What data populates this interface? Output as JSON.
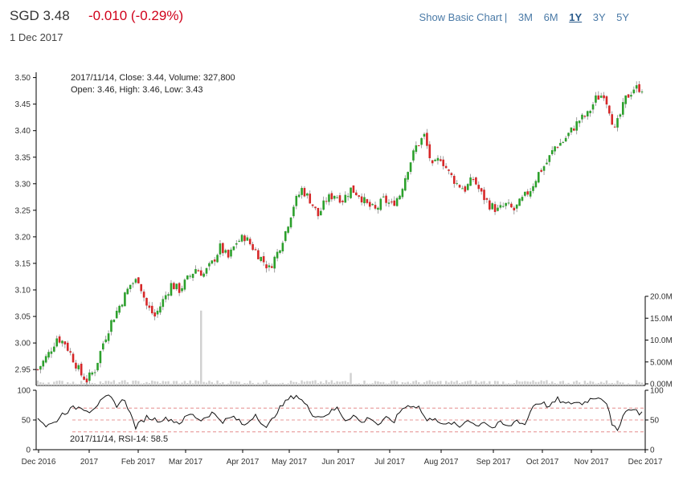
{
  "header": {
    "symbol_price": "SGD 3.48",
    "change": "-0.010 (-0.29%)",
    "date": "1 Dec 2017"
  },
  "nav": {
    "basic": "Show Basic Chart",
    "sep": "|",
    "ranges": [
      "3M",
      "6M",
      "1Y",
      "3Y",
      "5Y"
    ],
    "active": "1Y"
  },
  "tooltip": {
    "line1": "2017/11/14, Close: 3.44, Volume: 327,800",
    "line2": "Open: 3.46, High: 3.46, Low: 3.43",
    "rsi": "2017/11/14, RSI-14: 58.5"
  },
  "chart_data": {
    "type": "candlestick",
    "price_axis": {
      "min": 2.92,
      "max": 3.51,
      "ticks": [
        "2.95",
        "3.00",
        "3.05",
        "3.10",
        "3.15",
        "3.20",
        "3.25",
        "3.30",
        "3.35",
        "3.40",
        "3.45",
        "3.50"
      ]
    },
    "volume_axis": {
      "max": 20000000,
      "ticks": [
        "0.00M",
        "5.00M",
        "10.0M",
        "15.0M",
        "20.0M"
      ]
    },
    "rsi_axis": {
      "min": 0,
      "max": 100,
      "ticks": [
        "0",
        "50",
        "100"
      ],
      "bands": [
        30,
        50,
        70
      ]
    },
    "x_labels": [
      "Dec 2016",
      "2017",
      "Feb 2017",
      "Mar 2017",
      "Apr 2017",
      "May 2017",
      "Jun 2017",
      "Jul 2017",
      "Aug 2017",
      "Sep 2017",
      "Oct 2017",
      "Nov 2017",
      "Dec 2017"
    ],
    "up_color": "#2ca02c",
    "down_color": "#d62728",
    "close_path": [
      [
        0,
        2.95
      ],
      [
        4,
        2.98
      ],
      [
        7,
        3.01
      ],
      [
        10,
        3.0
      ],
      [
        13,
        2.97
      ],
      [
        16,
        2.94
      ],
      [
        18,
        2.93
      ],
      [
        21,
        2.95
      ],
      [
        24,
        3.0
      ],
      [
        27,
        3.04
      ],
      [
        31,
        3.08
      ],
      [
        34,
        3.11
      ],
      [
        37,
        3.12
      ],
      [
        40,
        3.07
      ],
      [
        43,
        3.05
      ],
      [
        46,
        3.08
      ],
      [
        49,
        3.11
      ],
      [
        52,
        3.1
      ],
      [
        55,
        3.12
      ],
      [
        58,
        3.14
      ],
      [
        61,
        3.13
      ],
      [
        64,
        3.15
      ],
      [
        67,
        3.18
      ],
      [
        70,
        3.16
      ],
      [
        73,
        3.19
      ],
      [
        76,
        3.2
      ],
      [
        79,
        3.18
      ],
      [
        82,
        3.16
      ],
      [
        85,
        3.14
      ],
      [
        88,
        3.17
      ],
      [
        91,
        3.21
      ],
      [
        94,
        3.26
      ],
      [
        97,
        3.29
      ],
      [
        100,
        3.27
      ],
      [
        103,
        3.24
      ],
      [
        106,
        3.27
      ],
      [
        109,
        3.28
      ],
      [
        112,
        3.27
      ],
      [
        115,
        3.29
      ],
      [
        118,
        3.28
      ],
      [
        121,
        3.26
      ],
      [
        124,
        3.25
      ],
      [
        127,
        3.27
      ],
      [
        130,
        3.26
      ],
      [
        133,
        3.28
      ],
      [
        136,
        3.33
      ],
      [
        139,
        3.37
      ],
      [
        142,
        3.39
      ],
      [
        145,
        3.33
      ],
      [
        148,
        3.35
      ],
      [
        151,
        3.32
      ],
      [
        154,
        3.3
      ],
      [
        157,
        3.29
      ],
      [
        160,
        3.31
      ],
      [
        163,
        3.28
      ],
      [
        166,
        3.26
      ],
      [
        169,
        3.25
      ],
      [
        172,
        3.26
      ],
      [
        175,
        3.25
      ],
      [
        178,
        3.27
      ],
      [
        181,
        3.29
      ],
      [
        184,
        3.32
      ],
      [
        187,
        3.34
      ],
      [
        190,
        3.37
      ],
      [
        193,
        3.38
      ],
      [
        196,
        3.4
      ],
      [
        199,
        3.42
      ],
      [
        202,
        3.43
      ],
      [
        205,
        3.46
      ],
      [
        208,
        3.47
      ],
      [
        210,
        3.44
      ],
      [
        212,
        3.4
      ],
      [
        214,
        3.43
      ],
      [
        216,
        3.46
      ],
      [
        219,
        3.48
      ],
      [
        222,
        3.48
      ]
    ],
    "volume_spikes": [
      [
        60,
        16.8
      ],
      [
        115,
        2.8
      ]
    ],
    "rsi_path": [
      [
        0,
        55
      ],
      [
        3,
        40
      ],
      [
        6,
        45
      ],
      [
        9,
        60
      ],
      [
        13,
        70
      ],
      [
        16,
        72
      ],
      [
        19,
        65
      ],
      [
        23,
        80
      ],
      [
        26,
        90
      ],
      [
        29,
        75
      ],
      [
        32,
        85
      ],
      [
        34,
        60
      ],
      [
        36,
        38
      ],
      [
        40,
        55
      ],
      [
        44,
        50
      ],
      [
        48,
        52
      ],
      [
        52,
        45
      ],
      [
        56,
        60
      ],
      [
        60,
        50
      ],
      [
        64,
        62
      ],
      [
        68,
        48
      ],
      [
        72,
        55
      ],
      [
        76,
        40
      ],
      [
        80,
        60
      ],
      [
        84,
        35
      ],
      [
        88,
        65
      ],
      [
        92,
        85
      ],
      [
        95,
        92
      ],
      [
        98,
        78
      ],
      [
        101,
        60
      ],
      [
        104,
        55
      ],
      [
        107,
        62
      ],
      [
        110,
        70
      ],
      [
        113,
        50
      ],
      [
        116,
        58
      ],
      [
        119,
        45
      ],
      [
        122,
        55
      ],
      [
        125,
        42
      ],
      [
        128,
        52
      ],
      [
        131,
        48
      ],
      [
        134,
        70
      ],
      [
        137,
        75
      ],
      [
        140,
        72
      ],
      [
        143,
        48
      ],
      [
        146,
        55
      ],
      [
        149,
        40
      ],
      [
        152,
        45
      ],
      [
        155,
        38
      ],
      [
        158,
        52
      ],
      [
        161,
        40
      ],
      [
        164,
        48
      ],
      [
        167,
        36
      ],
      [
        170,
        45
      ],
      [
        173,
        38
      ],
      [
        176,
        50
      ],
      [
        179,
        42
      ],
      [
        182,
        75
      ],
      [
        185,
        80
      ],
      [
        188,
        72
      ],
      [
        191,
        85
      ],
      [
        194,
        76
      ],
      [
        197,
        80
      ],
      [
        200,
        78
      ],
      [
        203,
        85
      ],
      [
        206,
        90
      ],
      [
        209,
        80
      ],
      [
        211,
        40
      ],
      [
        213,
        32
      ],
      [
        215,
        60
      ],
      [
        218,
        70
      ],
      [
        221,
        62
      ]
    ]
  }
}
